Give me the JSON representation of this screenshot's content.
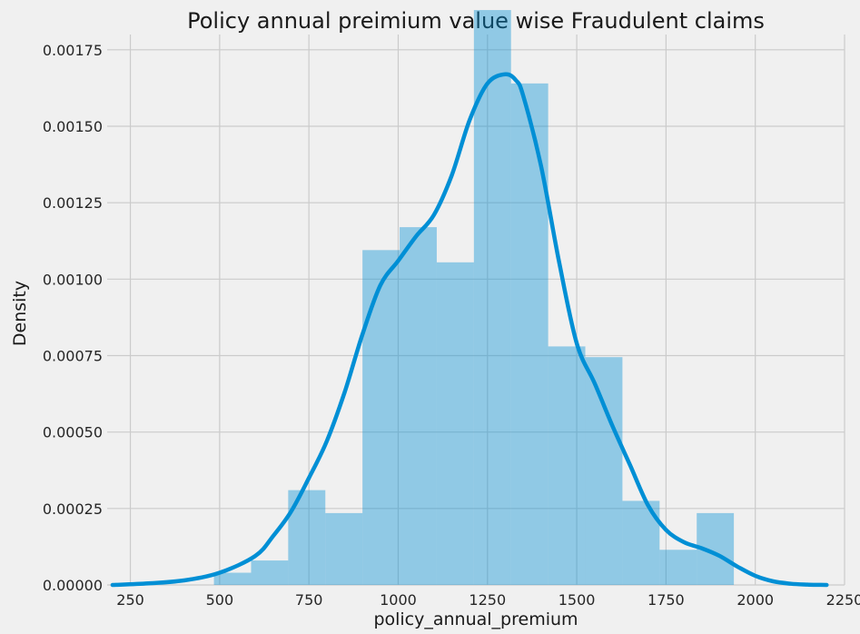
{
  "chart_data": {
    "type": "histogram",
    "title": "Policy annual preimium value wise Fraudulent claims",
    "xlabel": "policy_annual_premium",
    "ylabel": "Density",
    "xlim": [
      185,
      2250
    ],
    "ylim": [
      0,
      0.0018
    ],
    "x_ticks": [
      250,
      500,
      750,
      1000,
      1250,
      1500,
      1750,
      2000,
      2250
    ],
    "y_ticks": [
      0.0,
      0.00025,
      0.0005,
      0.00075,
      0.001,
      0.00125,
      0.0015,
      0.00175
    ],
    "y_tick_labels": [
      "0.00000",
      "0.00025",
      "0.00050",
      "0.00075",
      "0.00100",
      "0.00125",
      "0.00150",
      "0.00175"
    ],
    "x_tick_labels": [
      "250",
      "500",
      "750",
      "1000",
      "1250",
      "1500",
      "1750",
      "2000",
      "2250"
    ],
    "grid": true,
    "color": "#008fd5",
    "bins": [
      {
        "x0": 484,
        "x1": 588,
        "density": 4e-05
      },
      {
        "x0": 588,
        "x1": 692,
        "density": 8e-05
      },
      {
        "x0": 692,
        "x1": 796,
        "density": 0.00031
      },
      {
        "x0": 796,
        "x1": 900,
        "density": 0.000235
      },
      {
        "x0": 900,
        "x1": 1004,
        "density": 0.001095
      },
      {
        "x0": 1004,
        "x1": 1108,
        "density": 0.00117
      },
      {
        "x0": 1108,
        "x1": 1212,
        "density": 0.001055
      },
      {
        "x0": 1212,
        "x1": 1316,
        "density": 0.00188
      },
      {
        "x0": 1316,
        "x1": 1420,
        "density": 0.00164
      },
      {
        "x0": 1420,
        "x1": 1524,
        "density": 0.00078
      },
      {
        "x0": 1524,
        "x1": 1628,
        "density": 0.000745
      },
      {
        "x0": 1628,
        "x1": 1732,
        "density": 0.000275
      },
      {
        "x0": 1732,
        "x1": 1836,
        "density": 0.000115
      },
      {
        "x0": 1836,
        "x1": 1940,
        "density": 0.000235
      }
    ],
    "kde": {
      "x": [
        200,
        300,
        400,
        500,
        600,
        650,
        700,
        750,
        800,
        850,
        900,
        950,
        1000,
        1050,
        1100,
        1150,
        1200,
        1250,
        1300,
        1330,
        1350,
        1400,
        1450,
        1500,
        1550,
        1600,
        1650,
        1700,
        1750,
        1800,
        1850,
        1900,
        1950,
        2000,
        2050,
        2100,
        2150,
        2200
      ],
      "y": [
        0.0,
        5e-06,
        1.5e-05,
        4e-05,
        9.5e-05,
        0.00016,
        0.00024,
        0.00035,
        0.00047,
        0.00063,
        0.00082,
        0.00098,
        0.00106,
        0.00114,
        0.00121,
        0.00134,
        0.00152,
        0.00164,
        0.00167,
        0.00165,
        0.0016,
        0.00137,
        0.00106,
        0.00079,
        0.00066,
        0.00052,
        0.00039,
        0.00026,
        0.00018,
        0.00014,
        0.00012,
        9.5e-05,
        6e-05,
        3e-05,
        1.2e-05,
        4e-06,
        1e-06,
        0.0
      ]
    }
  }
}
